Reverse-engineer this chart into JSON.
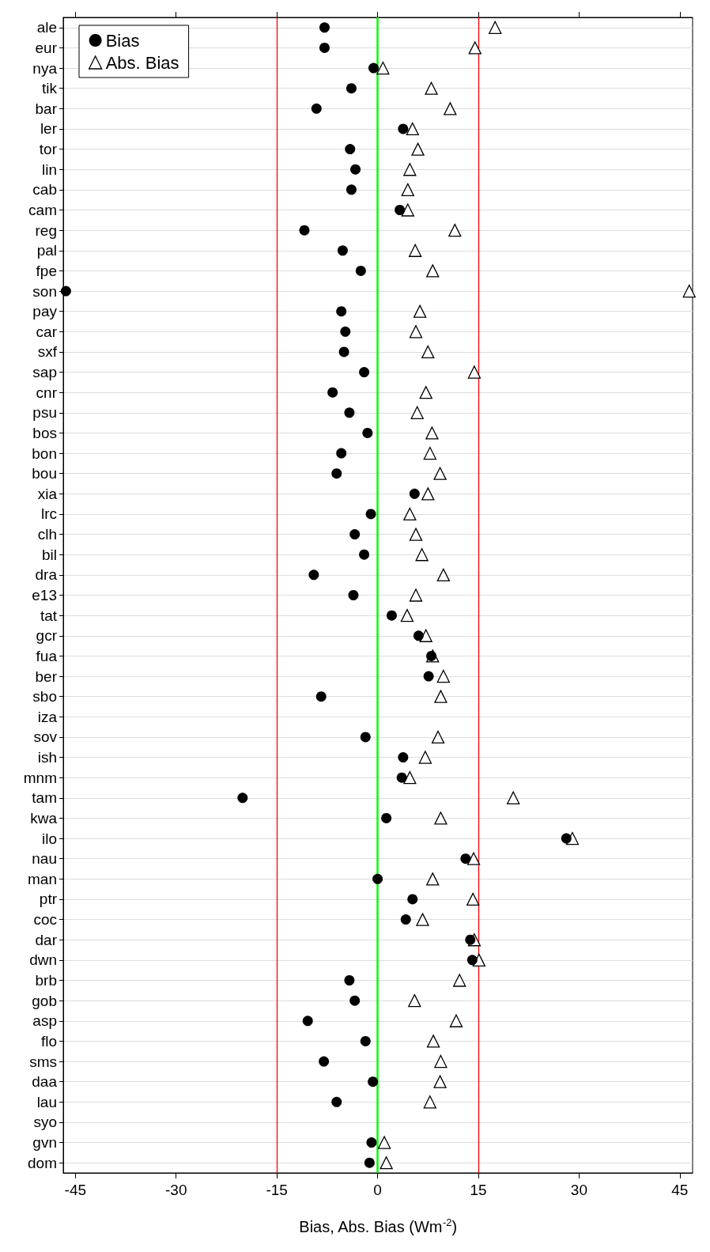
{
  "chart_data": {
    "type": "scatter",
    "xlabel": "Bias, Abs. Bias (Wm$^{-2}$)",
    "categories": [
      "ale",
      "eur",
      "nya",
      "tik",
      "bar",
      "ler",
      "tor",
      "lin",
      "cab",
      "cam",
      "reg",
      "pal",
      "fpe",
      "son",
      "pay",
      "car",
      "sxf",
      "sap",
      "cnr",
      "psu",
      "bos",
      "bon",
      "bou",
      "xia",
      "lrc",
      "clh",
      "bil",
      "dra",
      "e13",
      "tat",
      "gcr",
      "fua",
      "ber",
      "sbo",
      "iza",
      "sov",
      "ish",
      "mnm",
      "tam",
      "kwa",
      "ilo",
      "nau",
      "man",
      "ptr",
      "coc",
      "dar",
      "dwn",
      "brb",
      "gob",
      "asp",
      "flo",
      "sms",
      "daa",
      "lau",
      "syo",
      "gvn",
      "dom"
    ],
    "series": [
      {
        "name": "Bias",
        "color": "#000000",
        "marker": "circle",
        "values": [
          -7.9,
          -7.9,
          -0.6,
          -3.9,
          -9.1,
          3.8,
          -4.1,
          -3.3,
          -3.9,
          3.3,
          -10.9,
          -5.2,
          -2.5,
          -46.4,
          -5.4,
          -4.8,
          -5.0,
          -2.0,
          -6.7,
          -4.2,
          -1.5,
          -5.4,
          -6.1,
          5.5,
          -1.0,
          -3.4,
          -2.0,
          -9.5,
          -3.6,
          2.1,
          6.1,
          8.0,
          7.6,
          -8.4,
          null,
          -1.8,
          3.8,
          3.6,
          -20.1,
          1.3,
          28.1,
          13.1,
          0.0,
          5.2,
          4.2,
          13.8,
          14.1,
          -4.2,
          -3.4,
          -10.4,
          -1.8,
          -8.0,
          -0.7,
          -6.1,
          null,
          -0.9,
          -1.2
        ]
      },
      {
        "name": "Abs. Bias",
        "color": "#000000",
        "marker": "triangle",
        "values": [
          17.5,
          14.5,
          0.8,
          8.0,
          10.8,
          5.2,
          6.0,
          4.8,
          4.5,
          4.5,
          11.5,
          5.6,
          8.2,
          46.4,
          6.3,
          5.7,
          7.5,
          14.4,
          7.2,
          5.9,
          8.1,
          7.8,
          9.3,
          7.5,
          4.8,
          5.7,
          6.6,
          9.8,
          5.7,
          4.4,
          7.2,
          8.2,
          9.8,
          9.4,
          null,
          9.0,
          7.1,
          4.8,
          20.2,
          9.4,
          29.0,
          14.3,
          8.2,
          14.2,
          6.7,
          14.4,
          15.1,
          12.2,
          5.5,
          11.7,
          8.3,
          9.4,
          9.3,
          7.8,
          null,
          1.0,
          1.3
        ]
      }
    ],
    "xlim": [
      -46.8,
      46.9
    ],
    "xticks": [
      -45,
      -30,
      -15,
      0,
      15,
      30,
      45
    ],
    "ref_lines": [
      {
        "axis": "x",
        "value": -15,
        "color": "#ff0000"
      },
      {
        "axis": "x",
        "value": 15,
        "color": "#ff0000"
      },
      {
        "axis": "x",
        "value": 0,
        "color": "#00ff00"
      }
    ],
    "orientation": "horizontal",
    "grid": "y",
    "legend": "top left"
  }
}
